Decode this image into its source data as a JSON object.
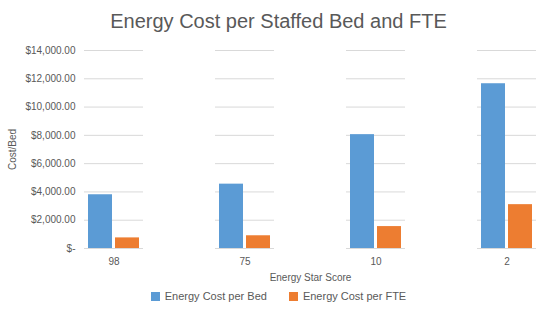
{
  "chart_data": {
    "type": "bar",
    "title": "Energy Cost per Staffed Bed and FTE",
    "x_label": "Energy Star Score",
    "y_label": "Cost/Bed",
    "categories": [
      "98",
      "75",
      "10",
      "2"
    ],
    "series": [
      {
        "name": "Energy Cost per Bed",
        "color": "#5b9bd5",
        "values": [
          3800,
          4550,
          8050,
          11650
        ]
      },
      {
        "name": "Energy Cost per FTE",
        "color": "#ed7d31",
        "values": [
          750,
          900,
          1550,
          3100
        ]
      }
    ],
    "ylim": [
      0,
      14000
    ],
    "yticks": [
      {
        "value": 0,
        "label": "$-"
      },
      {
        "value": 2000,
        "label": "$2,000.00"
      },
      {
        "value": 4000,
        "label": "$4,000.00"
      },
      {
        "value": 6000,
        "label": "$6,000.00"
      },
      {
        "value": 8000,
        "label": "$8,000.00"
      },
      {
        "value": 10000,
        "label": "$10,000.00"
      },
      {
        "value": 12000,
        "label": "$12,000.00"
      },
      {
        "value": 14000,
        "label": "$14,000.00"
      }
    ],
    "grid": true,
    "legend": "bottom"
  }
}
